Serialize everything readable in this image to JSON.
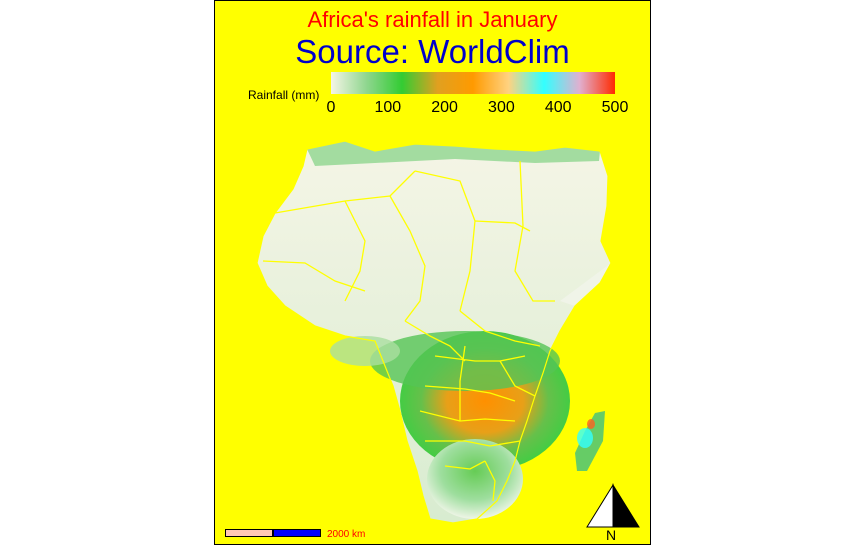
{
  "title": "Africa's rainfall in January",
  "subtitle": "Source: WorldClim",
  "colors": {
    "background": "#ffff00",
    "title": "#ff0000",
    "subtitle": "#0000cc",
    "borders": "#ffff00",
    "scale_bar_left": "#ffc8b4",
    "scale_bar_right": "#0000ff",
    "scale_label": "#ff0000"
  },
  "legend": {
    "title": "Rainfall (mm)",
    "ticks": [
      "0",
      "100",
      "200",
      "300",
      "400",
      "500"
    ],
    "range": [
      0,
      500
    ],
    "palette": [
      "#f5f5e6",
      "#8fd68f",
      "#33cc33",
      "#e0a020",
      "#ff9a00",
      "#ffd280",
      "#33ffff",
      "#e0b0d0",
      "#ff2a00"
    ]
  },
  "scale_bar": {
    "label": "2000 km"
  },
  "north_arrow": {
    "label": "N"
  },
  "map": {
    "region": "Africa",
    "variable": "rainfall",
    "month": "January"
  }
}
